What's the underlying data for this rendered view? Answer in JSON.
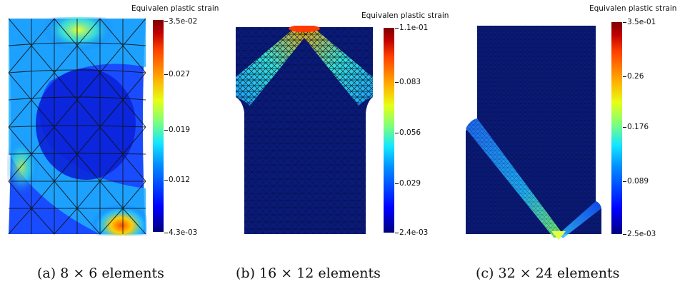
{
  "colorbar_title": "Equivalen plastic strain",
  "panels": [
    {
      "caption": "(a) 8 × 6 elements",
      "ticks": [
        "3.5e-02",
        "0.027",
        "0.019",
        "0.012",
        "4.3e-03"
      ]
    },
    {
      "caption": "(b) 16 × 12 elements",
      "ticks": [
        "1.1e-01",
        "0.083",
        "0.056",
        "0.029",
        "2.4e-03"
      ]
    },
    {
      "caption": "(c) 32 × 24 elements",
      "ticks": [
        "3.5e-01",
        "0.26",
        "0.176",
        "0.089",
        "2.5e-03"
      ]
    }
  ]
}
